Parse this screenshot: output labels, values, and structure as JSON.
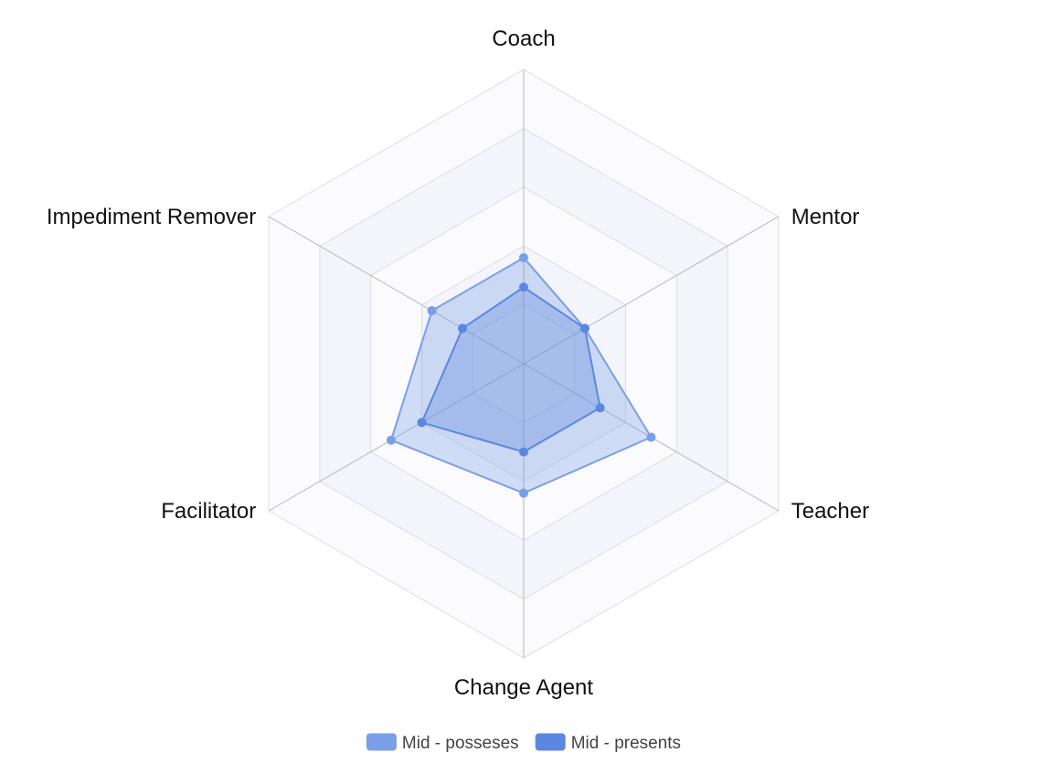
{
  "chart_data": {
    "type": "radar",
    "indicators": [
      "Coach",
      "Mentor",
      "Teacher",
      "Change Agent",
      "Facilitator",
      "Impediment Remover"
    ],
    "max": 5,
    "split_number": 5,
    "split_area_colors": [
      "#fbfbfd",
      "#f3f5fa"
    ],
    "grid_line_color": "#dcdde2",
    "axis_line_color": "#b7b7bb",
    "legend_position": "bottom-center",
    "series": [
      {
        "name": "Mid - posseses",
        "values": [
          1.8,
          1.2,
          2.5,
          2.2,
          2.6,
          1.8
        ],
        "color": "#7a9fe8",
        "fill": "rgba(122, 159, 232, 0.33)"
      },
      {
        "name": "Mid - presents",
        "values": [
          1.3,
          1.2,
          1.5,
          1.5,
          2.0,
          1.2
        ],
        "color": "#5b87e0",
        "fill": "rgba(91, 135, 224, 0.35)"
      }
    ]
  }
}
